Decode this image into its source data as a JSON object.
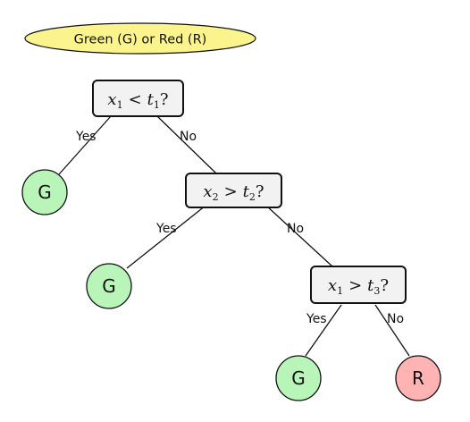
{
  "title": "Green (G) or Red (R)",
  "colors": {
    "title_fill": "#fbf38c",
    "green_leaf": "#b9f5b9",
    "red_leaf": "#ffb3b3",
    "node_fill": "#f2f2f2"
  },
  "nodes": [
    {
      "id": "n1",
      "var": "x",
      "sub": "1",
      "op": "<",
      "thr": "t",
      "thr_sub": "1"
    },
    {
      "id": "n2",
      "var": "x",
      "sub": "2",
      "op": ">",
      "thr": "t",
      "thr_sub": "2"
    },
    {
      "id": "n3",
      "var": "x",
      "sub": "1",
      "op": ">",
      "thr": "t",
      "thr_sub": "3"
    }
  ],
  "edges": {
    "n1_yes": "Yes",
    "n1_no": "No",
    "n2_yes": "Yes",
    "n2_no": "No",
    "n3_yes": "Yes",
    "n3_no": "No"
  },
  "leaves": {
    "l1": "G",
    "l2": "G",
    "l3": "G",
    "l4": "R"
  }
}
